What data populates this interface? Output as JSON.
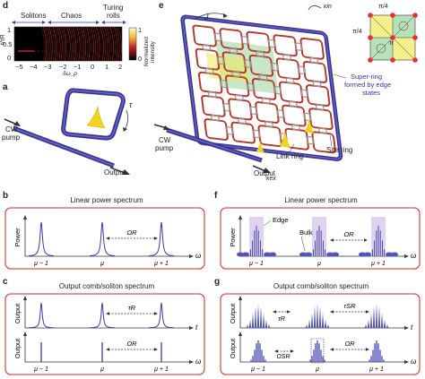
{
  "panel_d": {
    "letter": "d",
    "regions": [
      "Solitons",
      "Chaos",
      "Turing rolls"
    ],
    "region_turing_line1": "Turing",
    "region_turing_line2": "rolls",
    "ylabel": "t/τR",
    "y_ticks": [
      "1",
      "0.5",
      "0"
    ],
    "x_ticks": [
      "−5",
      "−4",
      "−3",
      "−2",
      "−1",
      "0",
      "1",
      "2"
    ],
    "xlabel": "δω_p",
    "colorbar_ticks": [
      "1",
      "0"
    ],
    "colorbar_label": "Normalized intensity",
    "colorbar_label_line1": "Normalized",
    "colorbar_label_line2": "intensity"
  },
  "panel_a": {
    "letter": "a",
    "labels": {
      "tau": "τ",
      "cw_pump_line1": "CW",
      "cw_pump_line2": "pump",
      "output": "Output"
    }
  },
  "panel_e": {
    "letter": "e",
    "labels": {
      "J": "J",
      "kin": "κin",
      "kex": "κex",
      "phase_top": "π/4",
      "phase_left": "π/4",
      "pi": "π",
      "super_ring_line1": "Super-ring",
      "super_ring_line2": "formed by edge",
      "super_ring_line3": "states",
      "cw_pump_line1": "CW",
      "cw_pump_line2": "pump",
      "output": "Output",
      "link_ring": "Link ring",
      "site_ring": "Site ring"
    },
    "colors": {
      "site_ring": "#b03a2e",
      "link_ring": "#9a9a9a",
      "super_ring": "#3a3590",
      "highlight_yellow": "#f3e85a",
      "highlight_green": "#9bd49b"
    }
  },
  "panel_b": {
    "letter": "b",
    "title": "Linear power spectrum",
    "ylabel": "Power",
    "xlabel": "ω",
    "ticks": [
      "μ − 1",
      "μ",
      "μ + 1"
    ],
    "annotation": "ΩR"
  },
  "panel_f": {
    "letter": "f",
    "title": "Linear power spectrum",
    "ylabel": "Power",
    "xlabel": "ω",
    "ticks": [
      "μ − 1",
      "μ",
      "μ + 1"
    ],
    "annotation": "ΩR",
    "edge_label": "Edge",
    "bulk_label": "Bulk"
  },
  "panel_c": {
    "letter": "c",
    "title": "Output comb/soliton spectrum",
    "top_ylabel": "Output",
    "top_xlabel": "t",
    "top_annotation": "τR",
    "bottom_ylabel": "Output",
    "bottom_xlabel": "ω",
    "bottom_annotation": "ΩR",
    "ticks": [
      "μ − 1",
      "μ",
      "μ + 1"
    ]
  },
  "panel_g": {
    "letter": "g",
    "title": "Output comb/soliton spectrum",
    "top_ylabel": "Output",
    "top_xlabel": "t",
    "top_annotation_1": "τR",
    "top_annotation_2": "τSR",
    "bottom_ylabel": "Output",
    "bottom_xlabel": "ω",
    "bottom_annotation_1": "ΩSR",
    "bottom_annotation_2": "ΩR",
    "ticks": [
      "μ − 1",
      "μ",
      "μ + 1"
    ]
  },
  "colors": {
    "frame_red": "#d9534f",
    "line_blue": "#3a3aa0",
    "fill_blue": "#5454b8",
    "edge_purple": "#d8c8ec"
  }
}
